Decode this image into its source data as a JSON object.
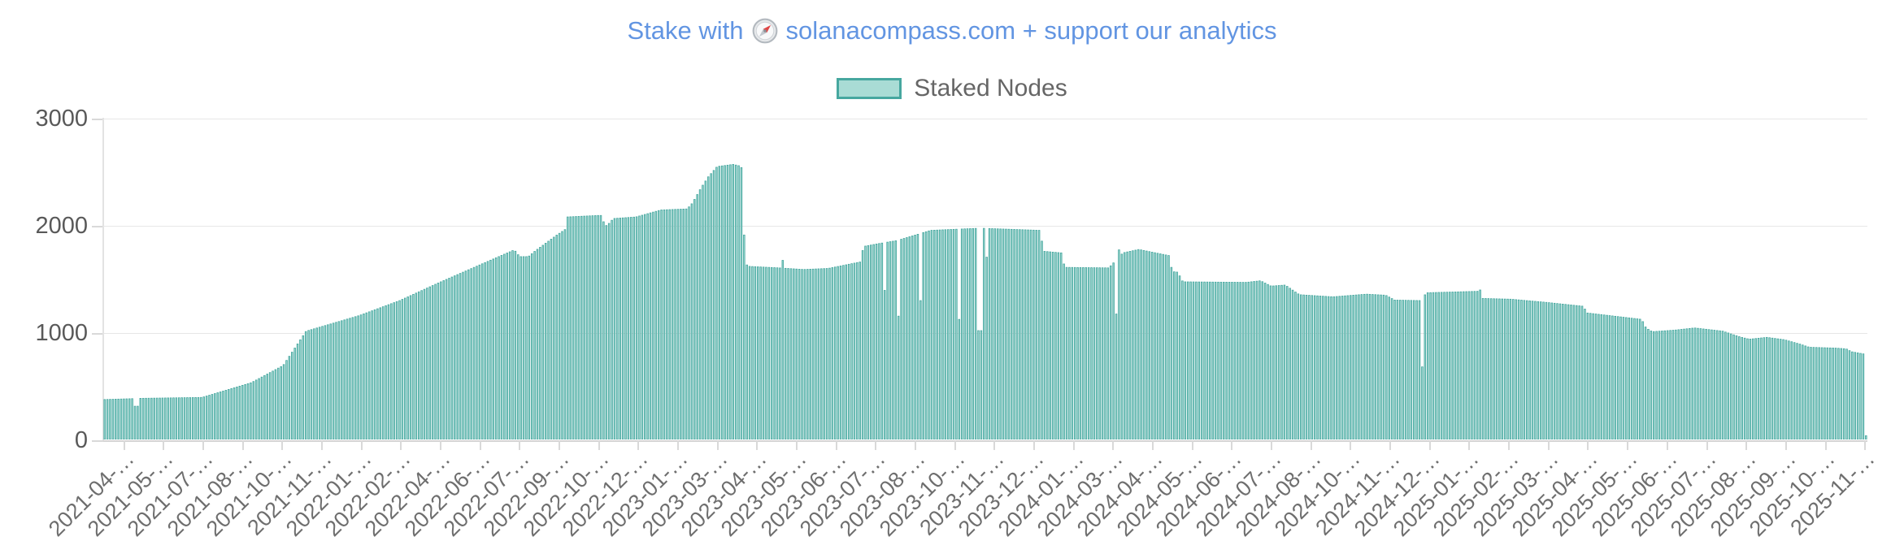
{
  "header": {
    "title_prefix": "Stake with",
    "title_suffix": "solanacompass.com + support our analytics",
    "title_color": "#6295e2"
  },
  "legend": {
    "items": [
      {
        "label": "Staked Nodes",
        "swatch_fill": "#a9dcd5",
        "swatch_border": "#46a79f"
      }
    ]
  },
  "chart_data": {
    "type": "bar",
    "title": "Stake with 🧭 solanacompass.com + support our analytics",
    "series_name": "Staked Nodes",
    "xlabel": "",
    "ylabel": "",
    "ylim": [
      0,
      3000
    ],
    "y_ticks": [
      0,
      1000,
      2000,
      3000
    ],
    "grid": true,
    "legend_position": "top",
    "bar_fill": "#9dd7d0",
    "bar_border": "#43a59d",
    "grid_color": "#e7e7e7",
    "axis_color": "#d4d4d4",
    "tick_color": "#d9d9d9",
    "x_tick_labels": [
      "2021-04-…",
      "2021-05-…",
      "2021-07-…",
      "2021-08-…",
      "2021-10-…",
      "2021-11-…",
      "2022-01-…",
      "2022-02-…",
      "2022-04-…",
      "2022-06-…",
      "2022-07-…",
      "2022-09-…",
      "2022-10-…",
      "2022-12-…",
      "2023-01-…",
      "2023-03-…",
      "2023-04-…",
      "2023-05-…",
      "2023-06-…",
      "2023-07-…",
      "2023-08-…",
      "2023-10-…",
      "2023-11-…",
      "2023-12-…",
      "2024-01-…",
      "2024-03-…",
      "2024-04-…",
      "2024-05-…",
      "2024-06-…",
      "2024-07-…",
      "2024-08-…",
      "2024-10-…",
      "2024-11-…",
      "2024-12-…",
      "2025-01-…",
      "2025-02-…",
      "2025-03-…",
      "2025-04-…",
      "2025-05-…",
      "2025-06-…",
      "2025-07-…",
      "2025-08-…",
      "2025-09-…",
      "2025-10-…",
      "2025-11-…"
    ],
    "approx_num_bars": 640,
    "profile": [
      [
        0.0,
        372
      ],
      [
        0.016,
        380
      ],
      [
        0.02,
        383
      ],
      [
        0.056,
        392
      ],
      [
        0.084,
        530
      ],
      [
        0.102,
        690
      ],
      [
        0.115,
        1010
      ],
      [
        0.145,
        1155
      ],
      [
        0.168,
        1295
      ],
      [
        0.19,
        1460
      ],
      [
        0.213,
        1625
      ],
      [
        0.233,
        1768
      ],
      [
        0.236,
        1705
      ],
      [
        0.241,
        1705
      ],
      [
        0.245,
        1760
      ],
      [
        0.257,
        1905
      ],
      [
        0.262,
        1960
      ],
      [
        0.263,
        2075
      ],
      [
        0.282,
        2090
      ],
      [
        0.284,
        2015
      ],
      [
        0.287,
        2015
      ],
      [
        0.289,
        2060
      ],
      [
        0.302,
        2075
      ],
      [
        0.316,
        2140
      ],
      [
        0.331,
        2150
      ],
      [
        0.334,
        2205
      ],
      [
        0.339,
        2350
      ],
      [
        0.343,
        2450
      ],
      [
        0.348,
        2545
      ],
      [
        0.357,
        2565
      ],
      [
        0.361,
        2550
      ],
      [
        0.3625,
        2520
      ],
      [
        0.3635,
        1735
      ],
      [
        0.365,
        1615
      ],
      [
        0.383,
        1600
      ],
      [
        0.397,
        1585
      ],
      [
        0.411,
        1595
      ],
      [
        0.429,
        1655
      ],
      [
        0.431,
        1800
      ],
      [
        0.439,
        1825
      ],
      [
        0.45,
        1855
      ],
      [
        0.469,
        1950
      ],
      [
        0.497,
        1970
      ],
      [
        0.531,
        1950
      ],
      [
        0.533,
        1755
      ],
      [
        0.543,
        1740
      ],
      [
        0.545,
        1605
      ],
      [
        0.57,
        1600
      ],
      [
        0.578,
        1740
      ],
      [
        0.587,
        1772
      ],
      [
        0.604,
        1715
      ],
      [
        0.606,
        1565
      ],
      [
        0.609,
        1560
      ],
      [
        0.612,
        1470
      ],
      [
        0.648,
        1465
      ],
      [
        0.656,
        1480
      ],
      [
        0.662,
        1430
      ],
      [
        0.67,
        1440
      ],
      [
        0.678,
        1350
      ],
      [
        0.697,
        1330
      ],
      [
        0.716,
        1355
      ],
      [
        0.727,
        1345
      ],
      [
        0.732,
        1300
      ],
      [
        0.747,
        1295
      ],
      [
        0.75,
        1368
      ],
      [
        0.78,
        1382
      ],
      [
        0.782,
        1315
      ],
      [
        0.798,
        1308
      ],
      [
        0.817,
        1280
      ],
      [
        0.839,
        1242
      ],
      [
        0.841,
        1180
      ],
      [
        0.872,
        1120
      ],
      [
        0.8745,
        1040
      ],
      [
        0.878,
        1005
      ],
      [
        0.891,
        1020
      ],
      [
        0.902,
        1040
      ],
      [
        0.918,
        1010
      ],
      [
        0.928,
        955
      ],
      [
        0.933,
        935
      ],
      [
        0.943,
        952
      ],
      [
        0.953,
        930
      ],
      [
        0.962,
        888
      ],
      [
        0.967,
        860
      ],
      [
        0.982,
        852
      ],
      [
        0.988,
        845
      ],
      [
        0.991,
        818
      ],
      [
        0.997,
        800
      ],
      [
        1.0,
        790
      ]
    ],
    "notches": [
      [
        0.0178,
        310
      ],
      [
        0.0195,
        310
      ],
      [
        0.2846,
        1995
      ],
      [
        0.4437,
        1390
      ],
      [
        0.4502,
        1150
      ],
      [
        0.4627,
        1295
      ],
      [
        0.4857,
        1120
      ],
      [
        0.4959,
        1015
      ],
      [
        0.4977,
        1015
      ],
      [
        0.5014,
        1700
      ],
      [
        0.5743,
        1170
      ],
      [
        0.7477,
        677
      ]
    ],
    "spikes": [
      [
        0.3847,
        1670
      ],
      [
        0.5761,
        1768
      ],
      [
        0.7804,
        1394
      ]
    ],
    "last_bar_value": 35
  }
}
